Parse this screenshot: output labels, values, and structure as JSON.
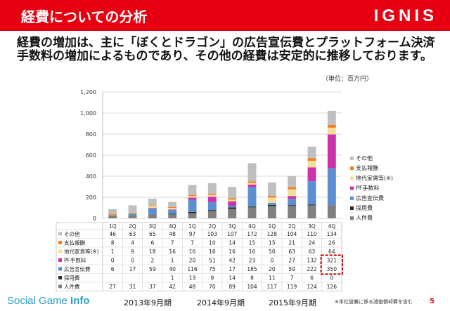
{
  "header": {
    "title": "経費についての分析",
    "logo": "IGNIS"
  },
  "body_text": "経費の増加は、主に「ぼくとドラゴン」の広告宣伝費とプラットフォーム決済手数料の増加によるものであり、その他の経費は安定的に推移しております。",
  "unit_note": "（単位：百万円）",
  "colors": {
    "brand": "#e60012",
    "highlight_box": "#c00000"
  },
  "chart_data": {
    "type": "bar",
    "stacked": true,
    "categories": [
      "1Q",
      "2Q",
      "3Q",
      "4Q",
      "1Q",
      "2Q",
      "3Q",
      "4Q",
      "1Q",
      "2Q",
      "3Q",
      "4Q"
    ],
    "ylim": [
      0,
      1200
    ],
    "yticks": [
      "0",
      "200",
      "400",
      "600",
      "800",
      "1,000",
      "1,200"
    ],
    "grid": true,
    "legend_position": "right",
    "series": [
      {
        "name": "人件費",
        "color": "#7f7f7f",
        "values": [
          27,
          31,
          37,
          42,
          48,
          70,
          89,
          104,
          117,
          119,
          124,
          126
        ]
      },
      {
        "name": "採用費",
        "color": "#2b2b2b",
        "values": [
          null,
          null,
          null,
          1,
          13,
          9,
          14,
          8,
          11,
          7,
          6,
          0
        ]
      },
      {
        "name": "広告宣伝費",
        "color": "#5b8fd1",
        "values": [
          6,
          17,
          59,
          40,
          116,
          75,
          17,
          185,
          20,
          59,
          222,
          350
        ]
      },
      {
        "name": "PF手数料",
        "color": "#cc33aa",
        "values": [
          0,
          0,
          2,
          1,
          20,
          51,
          42,
          23,
          0,
          27,
          132,
          321
        ]
      },
      {
        "name": "地代家賃等(※)",
        "color": "#f6dd9a",
        "values": [
          1,
          9,
          18,
          16,
          16,
          16,
          16,
          16,
          50,
          63,
          63,
          64
        ]
      },
      {
        "name": "支払報酬",
        "color": "#f07f1e",
        "values": [
          8,
          4,
          6,
          7,
          7,
          10,
          14,
          15,
          15,
          21,
          24,
          26
        ]
      },
      {
        "name": "その他",
        "color": "#bfbfbf",
        "values": [
          46,
          63,
          65,
          48,
          97,
          103,
          107,
          172,
          128,
          104,
          110,
          134
        ]
      }
    ],
    "highlighted": [
      "PF手数料:4Q-2015",
      "広告宣伝費:4Q-2015"
    ],
    "periods": [
      "2013年9月期",
      "2014年9月期",
      "2015年9月期"
    ]
  },
  "footer": {
    "brand_prefix": "Social Game ",
    "brand_suffix": "Info",
    "note": "※本社設備に係る減価償却費を含む",
    "page": "5"
  }
}
